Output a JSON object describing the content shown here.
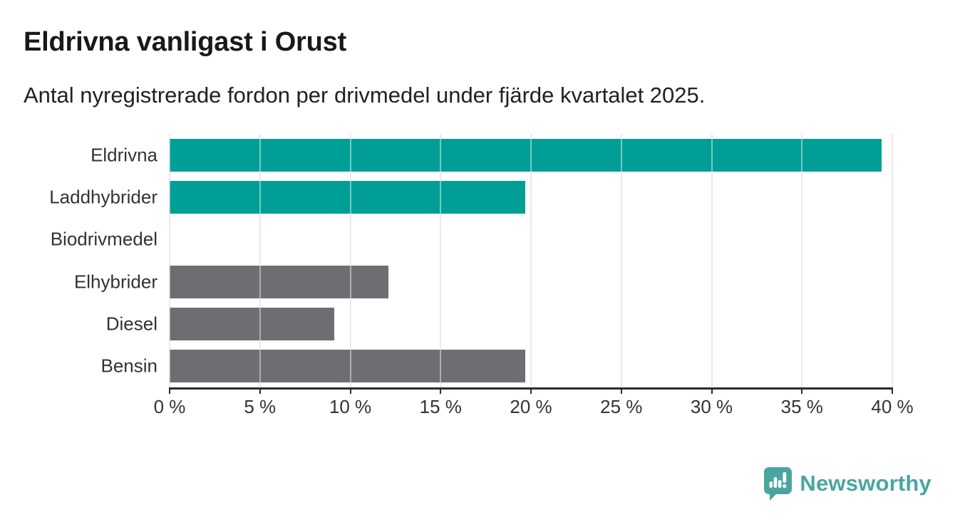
{
  "title": "Eldrivna vanligast i Orust",
  "subtitle": "Antal nyregistrerade fordon per drivmedel under fjärde kvartalet 2025.",
  "colors": {
    "highlight_bar": "#009e96",
    "default_bar": "#6e6e72",
    "axis": "#2b2b2b",
    "gridline": "#d9d9d9",
    "text": "#333333",
    "title_text": "#191919",
    "brand": "#4aa5a2"
  },
  "chart_data": {
    "type": "bar",
    "orientation": "horizontal",
    "title": "Eldrivna vanligast i Orust",
    "subtitle": "Antal nyregistrerade fordon per drivmedel under fjärde kvartalet 2025.",
    "categories": [
      "Eldrivna",
      "Laddhybrider",
      "Biodrivmedel",
      "Elhybrider",
      "Diesel",
      "Bensin"
    ],
    "values": [
      39.4,
      19.7,
      0,
      12.1,
      9.1,
      19.7
    ],
    "unit": "%",
    "bar_colors": [
      "#009e96",
      "#009e96",
      "#6e6e72",
      "#6e6e72",
      "#6e6e72",
      "#6e6e72"
    ],
    "xlabel": "",
    "ylabel": "",
    "xlim": [
      0,
      40
    ],
    "xtick_step": 5,
    "xtick_labels": [
      "0 %",
      "5 %",
      "10 %",
      "15 %",
      "20 %",
      "25 %",
      "30 %",
      "35 %",
      "40 %"
    ],
    "grid": "vertical",
    "legend": "none"
  },
  "footer": {
    "brand": "Newsworthy",
    "logo_icon": "bar-chart-exclamation-speech-bubble"
  }
}
